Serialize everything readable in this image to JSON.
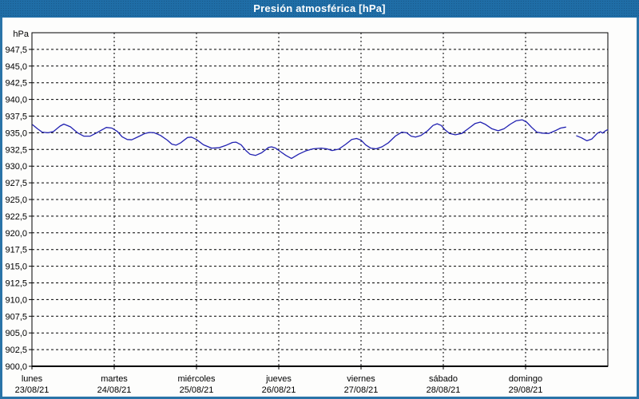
{
  "window": {
    "title": "Presión atmosférica [hPa]"
  },
  "chart_data": {
    "type": "line",
    "title": "Presión atmosférica [hPa]",
    "unit_label": "hPa",
    "ylabel": "hPa",
    "ylim": [
      900,
      950
    ],
    "y_tick_step": 2.5,
    "y_tick_values": [
      947.5,
      945.0,
      942.5,
      940.0,
      937.5,
      935.0,
      932.5,
      930.0,
      927.5,
      925.0,
      922.5,
      920.0,
      917.5,
      915.0,
      912.5,
      910.0,
      907.5,
      905.0,
      902.5,
      900.0
    ],
    "y_tick_labels": [
      "947,5",
      "945,0",
      "942,5",
      "940,0",
      "937,5",
      "935,0",
      "932,5",
      "930,0",
      "927,5",
      "925,0",
      "922,5",
      "920,0",
      "917,5",
      "915,0",
      "912,5",
      "910,0",
      "907,5",
      "905,0",
      "902,5",
      "900,0"
    ],
    "x_hours_range": [
      0,
      168
    ],
    "x_days": [
      {
        "name": "lunes",
        "date": "23/08/21"
      },
      {
        "name": "martes",
        "date": "24/08/21"
      },
      {
        "name": "miércoles",
        "date": "25/08/21"
      },
      {
        "name": "jueves",
        "date": "26/08/21"
      },
      {
        "name": "viernes",
        "date": "27/08/21"
      },
      {
        "name": "sábado",
        "date": "28/08/21"
      },
      {
        "name": "domingo",
        "date": "29/08/21"
      }
    ],
    "grid": true,
    "legend": "none",
    "colors": {
      "line": "#2121b1",
      "grid": "#000000",
      "axis": "#000000",
      "plot_bg": "#fdfdfc",
      "titlebar": "#1f6da6",
      "frame": "#2a74a8",
      "text": "#000000"
    },
    "series": [
      {
        "name": "Presión atmosférica",
        "unit": "hPa",
        "segments": [
          [
            [
              0.2,
              936.2
            ],
            [
              1.6,
              935.6
            ],
            [
              3,
              935.1
            ],
            [
              4.7,
              935.0
            ],
            [
              6.3,
              935.2
            ],
            [
              8.2,
              936.0
            ],
            [
              9.3,
              936.3
            ],
            [
              11.2,
              935.9
            ],
            [
              13.3,
              935.0
            ],
            [
              15.1,
              934.5
            ],
            [
              17,
              934.5
            ],
            [
              18.9,
              935.0
            ],
            [
              21.7,
              935.8
            ],
            [
              23.3,
              935.7
            ],
            [
              24.9,
              935.2
            ],
            [
              26.3,
              934.4
            ],
            [
              27.8,
              934.0
            ],
            [
              29.1,
              933.95
            ],
            [
              31,
              934.4
            ],
            [
              33,
              934.9
            ],
            [
              34.3,
              935.05
            ],
            [
              35.7,
              935.0
            ],
            [
              37.5,
              934.6
            ],
            [
              39.5,
              933.9
            ],
            [
              40.8,
              933.3
            ],
            [
              42,
              933.15
            ],
            [
              43.4,
              933.5
            ],
            [
              45.4,
              934.3
            ],
            [
              46.5,
              934.35
            ],
            [
              48,
              934.0
            ],
            [
              50,
              933.2
            ],
            [
              52.4,
              932.7
            ],
            [
              54.5,
              932.75
            ],
            [
              56.5,
              933.1
            ],
            [
              58.5,
              933.55
            ],
            [
              59.5,
              933.6
            ],
            [
              61,
              933.2
            ],
            [
              62.5,
              932.3
            ],
            [
              63.6,
              931.8
            ],
            [
              65.2,
              931.6
            ],
            [
              67,
              932.0
            ],
            [
              69,
              932.8
            ],
            [
              69.9,
              932.9
            ],
            [
              71.1,
              932.7
            ],
            [
              72.7,
              932.1
            ],
            [
              74.1,
              931.6
            ],
            [
              75.7,
              931.15
            ],
            [
              77.8,
              931.8
            ],
            [
              79.9,
              932.3
            ],
            [
              82,
              932.6
            ],
            [
              84.4,
              932.7
            ],
            [
              86,
              932.6
            ],
            [
              87.6,
              932.35
            ],
            [
              89.5,
              932.55
            ],
            [
              91.6,
              933.3
            ],
            [
              93.3,
              934.0
            ],
            [
              94.7,
              934.15
            ],
            [
              96,
              933.9
            ],
            [
              97.3,
              933.2
            ],
            [
              98.8,
              932.7
            ],
            [
              100.4,
              932.6
            ],
            [
              102.1,
              932.9
            ],
            [
              104,
              933.5
            ],
            [
              106,
              934.5
            ],
            [
              107.9,
              935.1
            ],
            [
              109.3,
              935.0
            ],
            [
              110.6,
              934.5
            ],
            [
              111.9,
              934.35
            ],
            [
              113.5,
              934.6
            ],
            [
              115.4,
              935.3
            ],
            [
              117,
              936.1
            ],
            [
              118.2,
              936.35
            ],
            [
              119.4,
              936.1
            ],
            [
              120.4,
              935.5
            ],
            [
              121.8,
              934.9
            ],
            [
              123.5,
              934.7
            ],
            [
              125.4,
              934.9
            ],
            [
              127.5,
              935.7
            ],
            [
              129.3,
              936.4
            ],
            [
              130.8,
              936.6
            ],
            [
              132.3,
              936.25
            ],
            [
              134.2,
              935.6
            ],
            [
              136,
              935.3
            ],
            [
              137.7,
              935.6
            ],
            [
              139.6,
              936.3
            ],
            [
              141.2,
              936.8
            ],
            [
              143,
              936.95
            ],
            [
              144.3,
              936.6
            ],
            [
              145.8,
              935.8
            ],
            [
              147.3,
              935.1
            ],
            [
              148.8,
              934.95
            ],
            [
              150.8,
              934.9
            ],
            [
              152.6,
              935.3
            ],
            [
              154.2,
              935.7
            ],
            [
              155.7,
              935.85
            ]
          ],
          [
            [
              158.9,
              934.55
            ],
            [
              160.3,
              934.25
            ],
            [
              161.9,
              933.8
            ],
            [
              163.3,
              934.05
            ],
            [
              164.9,
              934.9
            ],
            [
              165.8,
              935.15
            ],
            [
              166.5,
              934.95
            ],
            [
              167.3,
              935.3
            ],
            [
              167.9,
              935.45
            ]
          ]
        ]
      }
    ]
  }
}
